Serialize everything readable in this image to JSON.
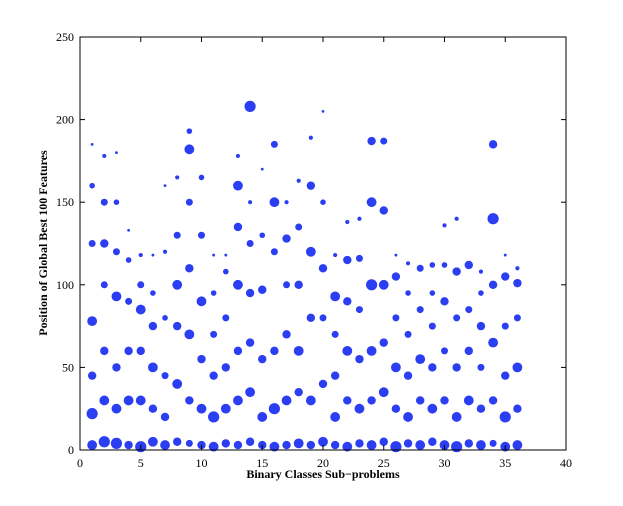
{
  "chart_data": {
    "type": "scatter",
    "x_label": "Binary Classes Sub−problems",
    "y_label": "Position of Global Best 100 Features",
    "color": "#2b3ef2",
    "xlim": [
      0,
      40
    ],
    "xticks": [
      0,
      5,
      10,
      15,
      20,
      25,
      30,
      35,
      40
    ],
    "ylim": [
      0,
      250
    ],
    "yticks": [
      0,
      50,
      100,
      150,
      200,
      250
    ],
    "series": [
      {
        "x": [
          1,
          1,
          1,
          1,
          1,
          1,
          1
        ],
        "values": [
          3,
          22,
          45,
          78,
          125,
          160,
          185
        ],
        "sizes": [
          7,
          8,
          6,
          7,
          5,
          4,
          2
        ]
      },
      {
        "x": [
          2,
          2,
          2,
          2,
          2,
          2,
          2
        ],
        "values": [
          5,
          30,
          60,
          100,
          125,
          150,
          178
        ],
        "sizes": [
          8,
          7,
          6,
          5,
          6,
          5,
          3
        ]
      },
      {
        "x": [
          3,
          3,
          3,
          3,
          3,
          3,
          3
        ],
        "values": [
          4,
          25,
          50,
          93,
          120,
          150,
          180
        ],
        "sizes": [
          8,
          7,
          6,
          7,
          5,
          4,
          2
        ]
      },
      {
        "x": [
          4,
          4,
          4,
          4,
          4,
          4
        ],
        "values": [
          3,
          30,
          60,
          90,
          115,
          133
        ],
        "sizes": [
          6,
          7,
          6,
          5,
          4,
          2
        ]
      },
      {
        "x": [
          5,
          5,
          5,
          5,
          5,
          5
        ],
        "values": [
          2,
          30,
          60,
          85,
          100,
          118
        ],
        "sizes": [
          8,
          7,
          6,
          7,
          5,
          3
        ]
      },
      {
        "x": [
          6,
          6,
          6,
          6,
          6,
          6
        ],
        "values": [
          5,
          25,
          50,
          75,
          95,
          118
        ],
        "sizes": [
          7,
          6,
          7,
          6,
          4,
          2
        ]
      },
      {
        "x": [
          7,
          7,
          7,
          7,
          7,
          7
        ],
        "values": [
          3,
          20,
          45,
          80,
          120,
          160
        ],
        "sizes": [
          7,
          6,
          5,
          4,
          3,
          2
        ]
      },
      {
        "x": [
          8,
          8,
          8,
          8,
          8,
          8
        ],
        "values": [
          5,
          40,
          75,
          100,
          130,
          165
        ],
        "sizes": [
          6,
          7,
          6,
          7,
          5,
          3
        ]
      },
      {
        "x": [
          9,
          9,
          9,
          9,
          9,
          9,
          9
        ],
        "values": [
          4,
          30,
          70,
          110,
          150,
          182,
          193
        ],
        "sizes": [
          5,
          6,
          7,
          6,
          5,
          7,
          4
        ]
      },
      {
        "x": [
          10,
          10,
          10,
          10,
          10,
          10
        ],
        "values": [
          3,
          25,
          55,
          90,
          130,
          165
        ],
        "sizes": [
          6,
          7,
          6,
          7,
          5,
          4
        ]
      },
      {
        "x": [
          11,
          11,
          11,
          11,
          11,
          11
        ],
        "values": [
          2,
          20,
          45,
          70,
          95,
          118
        ],
        "sizes": [
          7,
          8,
          6,
          5,
          4,
          2
        ]
      },
      {
        "x": [
          12,
          12,
          12,
          12,
          12,
          12
        ],
        "values": [
          4,
          25,
          50,
          80,
          108,
          118
        ],
        "sizes": [
          6,
          7,
          6,
          5,
          4,
          2
        ]
      },
      {
        "x": [
          13,
          13,
          13,
          13,
          13,
          13,
          13
        ],
        "values": [
          3,
          30,
          60,
          100,
          135,
          160,
          178
        ],
        "sizes": [
          6,
          7,
          6,
          7,
          6,
          7,
          3
        ]
      },
      {
        "x": [
          14,
          14,
          14,
          14,
          14,
          14,
          14
        ],
        "values": [
          5,
          35,
          65,
          95,
          125,
          150,
          208
        ],
        "sizes": [
          6,
          7,
          6,
          6,
          5,
          3,
          8
        ]
      },
      {
        "x": [
          15,
          15,
          15,
          15,
          15,
          15
        ],
        "values": [
          3,
          20,
          55,
          97,
          130,
          170
        ],
        "sizes": [
          6,
          7,
          6,
          6,
          4,
          2
        ]
      },
      {
        "x": [
          16,
          16,
          16,
          16,
          16,
          16
        ],
        "values": [
          2,
          25,
          60,
          120,
          150,
          185
        ],
        "sizes": [
          7,
          8,
          6,
          5,
          7,
          5
        ]
      },
      {
        "x": [
          17,
          17,
          17,
          17,
          17,
          17
        ],
        "values": [
          3,
          30,
          70,
          100,
          128,
          150
        ],
        "sizes": [
          6,
          7,
          6,
          5,
          6,
          3
        ]
      },
      {
        "x": [
          18,
          18,
          18,
          18,
          18,
          18
        ],
        "values": [
          4,
          35,
          60,
          100,
          135,
          163
        ],
        "sizes": [
          7,
          6,
          7,
          6,
          5,
          3
        ]
      },
      {
        "x": [
          19,
          19,
          19,
          19,
          19,
          19
        ],
        "values": [
          3,
          30,
          80,
          120,
          160,
          189
        ],
        "sizes": [
          6,
          7,
          6,
          7,
          6,
          3
        ]
      },
      {
        "x": [
          20,
          20,
          20,
          20,
          20,
          20
        ],
        "values": [
          5,
          40,
          80,
          110,
          150,
          205
        ],
        "sizes": [
          7,
          6,
          5,
          6,
          4,
          2
        ]
      },
      {
        "x": [
          21,
          21,
          21,
          21,
          21,
          21
        ],
        "values": [
          3,
          20,
          45,
          70,
          93,
          118
        ],
        "sizes": [
          6,
          7,
          6,
          5,
          7,
          3
        ]
      },
      {
        "x": [
          22,
          22,
          22,
          22,
          22,
          22
        ],
        "values": [
          2,
          30,
          60,
          90,
          115,
          138
        ],
        "sizes": [
          7,
          6,
          7,
          6,
          6,
          3
        ]
      },
      {
        "x": [
          23,
          23,
          23,
          23,
          23,
          23
        ],
        "values": [
          4,
          25,
          55,
          85,
          116,
          140
        ],
        "sizes": [
          6,
          7,
          6,
          5,
          5,
          3
        ]
      },
      {
        "x": [
          24,
          24,
          24,
          24,
          24,
          24
        ],
        "values": [
          3,
          30,
          60,
          100,
          150,
          187
        ],
        "sizes": [
          7,
          6,
          7,
          8,
          7,
          6
        ]
      },
      {
        "x": [
          25,
          25,
          25,
          25,
          25,
          25
        ],
        "values": [
          5,
          35,
          65,
          100,
          145,
          187
        ],
        "sizes": [
          6,
          7,
          6,
          7,
          6,
          5
        ]
      },
      {
        "x": [
          26,
          26,
          26,
          26,
          26,
          26
        ],
        "values": [
          2,
          25,
          50,
          80,
          105,
          118
        ],
        "sizes": [
          8,
          6,
          7,
          5,
          6,
          2
        ]
      },
      {
        "x": [
          27,
          27,
          27,
          27,
          27,
          27
        ],
        "values": [
          4,
          20,
          45,
          70,
          95,
          113
        ],
        "sizes": [
          6,
          7,
          6,
          5,
          4,
          3
        ]
      },
      {
        "x": [
          28,
          28,
          28,
          28,
          28
        ],
        "values": [
          3,
          30,
          55,
          85,
          110
        ],
        "sizes": [
          7,
          6,
          7,
          5,
          5
        ]
      },
      {
        "x": [
          29,
          29,
          29,
          29,
          29,
          29
        ],
        "values": [
          5,
          25,
          50,
          75,
          95,
          112
        ],
        "sizes": [
          6,
          7,
          6,
          5,
          4,
          4
        ]
      },
      {
        "x": [
          30,
          30,
          30,
          30,
          30,
          30
        ],
        "values": [
          3,
          30,
          60,
          90,
          112,
          136
        ],
        "sizes": [
          7,
          6,
          5,
          6,
          4,
          3
        ]
      },
      {
        "x": [
          31,
          31,
          31,
          31,
          31,
          31
        ],
        "values": [
          2,
          20,
          50,
          80,
          108,
          140
        ],
        "sizes": [
          8,
          7,
          6,
          5,
          6,
          3
        ]
      },
      {
        "x": [
          32,
          32,
          32,
          32,
          32
        ],
        "values": [
          4,
          30,
          60,
          85,
          112
        ],
        "sizes": [
          6,
          7,
          6,
          5,
          6
        ]
      },
      {
        "x": [
          33,
          33,
          33,
          33,
          33,
          33
        ],
        "values": [
          3,
          25,
          50,
          75,
          95,
          108
        ],
        "sizes": [
          7,
          6,
          5,
          6,
          4,
          3
        ]
      },
      {
        "x": [
          34,
          34,
          34,
          34,
          34,
          34
        ],
        "values": [
          4,
          30,
          65,
          100,
          140,
          185
        ],
        "sizes": [
          5,
          6,
          7,
          6,
          8,
          6
        ]
      },
      {
        "x": [
          35,
          35,
          35,
          35,
          35,
          35
        ],
        "values": [
          2,
          20,
          45,
          75,
          105,
          118
        ],
        "sizes": [
          7,
          8,
          6,
          5,
          6,
          2
        ]
      },
      {
        "x": [
          36,
          36,
          36,
          36,
          36,
          36
        ],
        "values": [
          3,
          25,
          50,
          80,
          101,
          110
        ],
        "sizes": [
          7,
          6,
          7,
          5,
          6,
          3
        ]
      }
    ]
  }
}
